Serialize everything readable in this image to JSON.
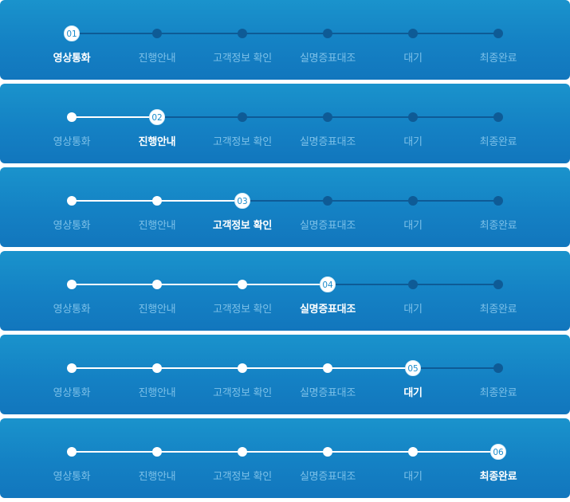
{
  "steps": [
    "영상통화",
    "진행안내",
    "고객정보 확인",
    "실명증표대조",
    "대기",
    "최종완료"
  ],
  "panels": [
    {
      "current": 1,
      "badge": "01"
    },
    {
      "current": 2,
      "badge": "02"
    },
    {
      "current": 3,
      "badge": "03"
    },
    {
      "current": 4,
      "badge": "04"
    },
    {
      "current": 5,
      "badge": "05"
    },
    {
      "current": 6,
      "badge": "06"
    }
  ],
  "colors": {
    "active": "#ffffff",
    "inactive_node": "#0e5b96",
    "inactive_label": "#7cc0e8"
  }
}
